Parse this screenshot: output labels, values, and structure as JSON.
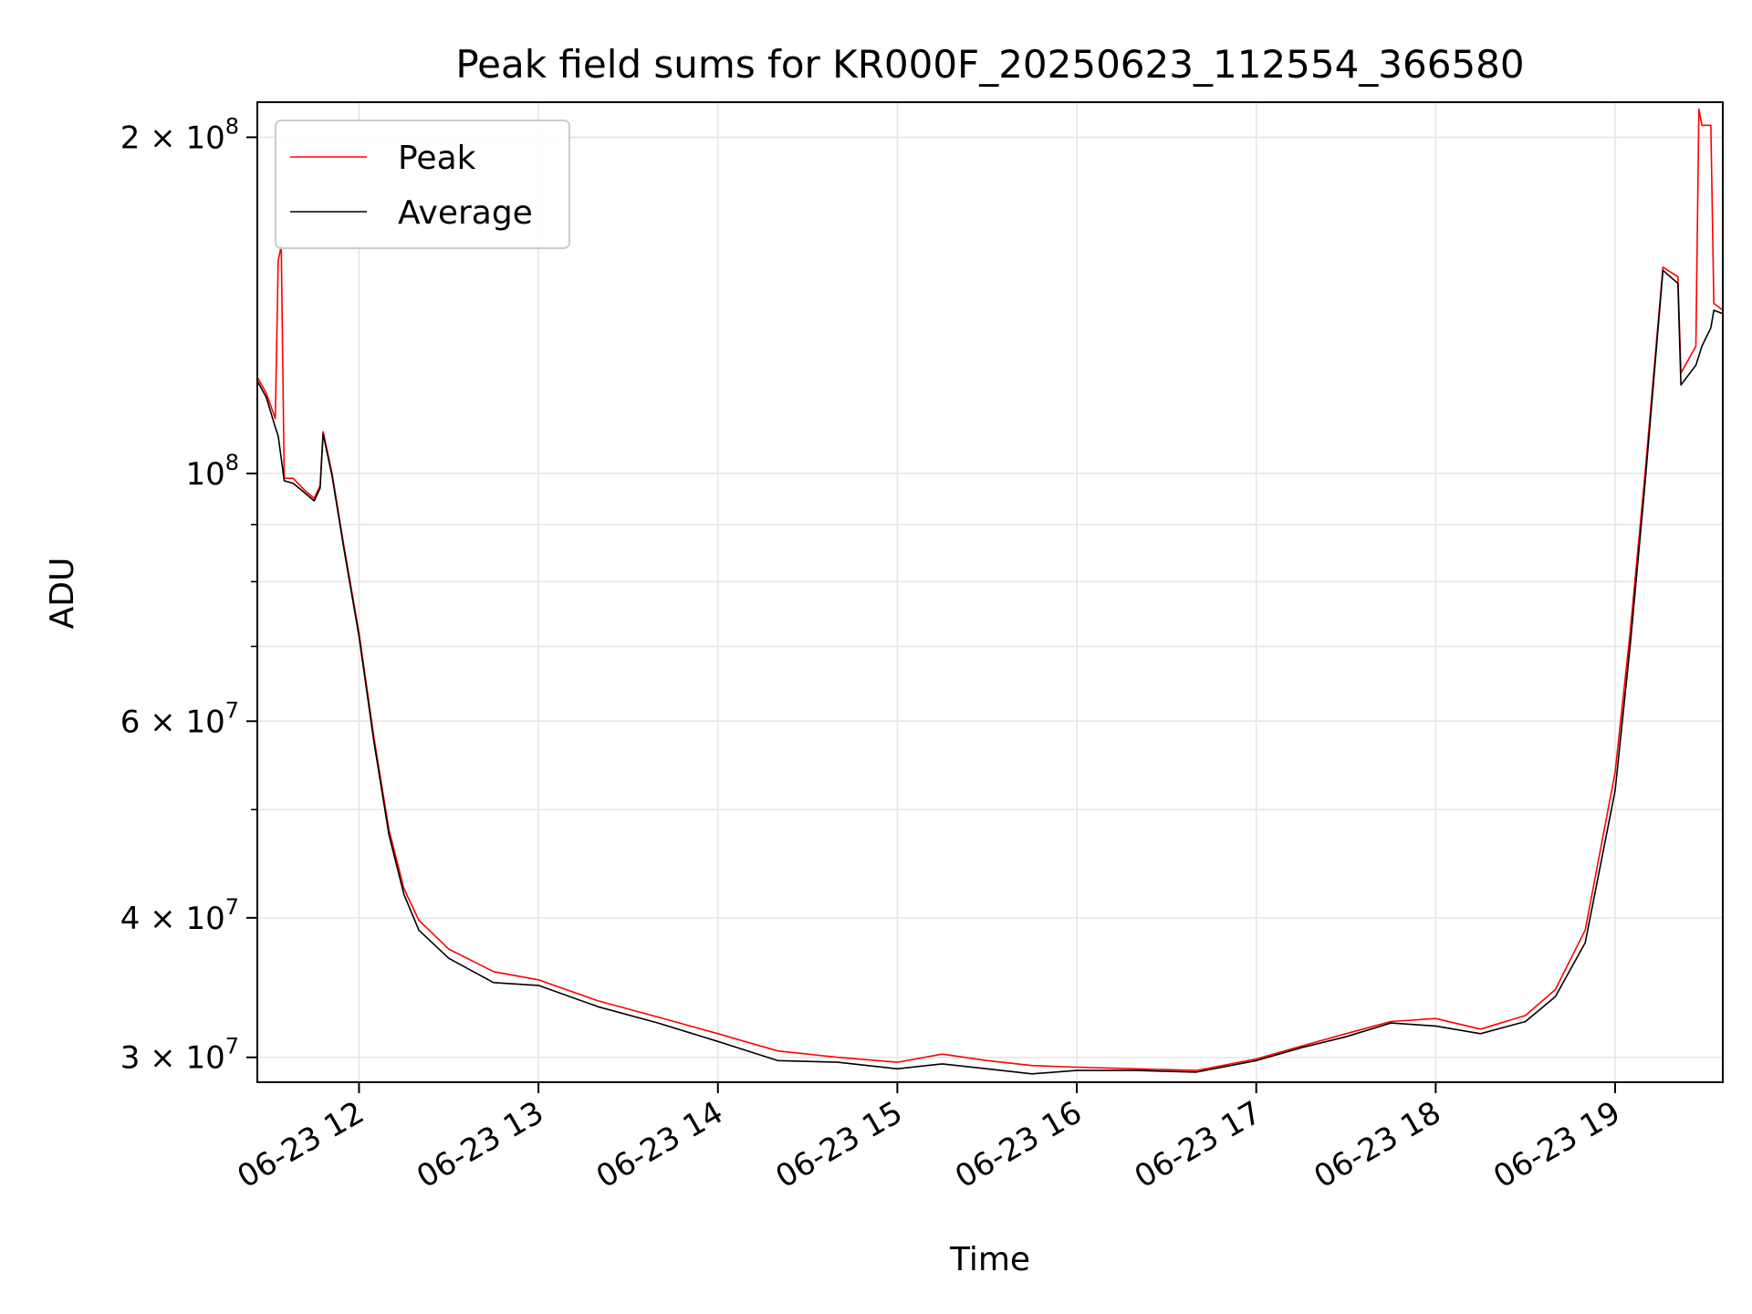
{
  "chart_data": {
    "type": "line",
    "title": "Peak field sums for KR000F_20250623_112554_366580",
    "xlabel": "Time",
    "ylabel": "ADU",
    "yscale": "log",
    "xlim": [
      "2025-06-23 11:26",
      "2025-06-23 19:36"
    ],
    "ylim": [
      28500000,
      215000000
    ],
    "grid": true,
    "legend_position": "top-left",
    "x_ticks": [
      {
        "value": "2025-06-23 12:00",
        "label": "06-23 12"
      },
      {
        "value": "2025-06-23 13:00",
        "label": "06-23 13"
      },
      {
        "value": "2025-06-23 14:00",
        "label": "06-23 14"
      },
      {
        "value": "2025-06-23 15:00",
        "label": "06-23 15"
      },
      {
        "value": "2025-06-23 16:00",
        "label": "06-23 16"
      },
      {
        "value": "2025-06-23 17:00",
        "label": "06-23 17"
      },
      {
        "value": "2025-06-23 18:00",
        "label": "06-23 18"
      },
      {
        "value": "2025-06-23 19:00",
        "label": "06-23 19"
      }
    ],
    "y_ticks_major": [
      {
        "value": 30000000,
        "base": "3 × 10",
        "exp": "7"
      },
      {
        "value": 40000000,
        "base": "4 × 10",
        "exp": "7"
      },
      {
        "value": 60000000,
        "base": "6 × 10",
        "exp": "7"
      },
      {
        "value": 100000000,
        "base": "10",
        "exp": "8"
      },
      {
        "value": 200000000,
        "base": "2 × 10",
        "exp": "8"
      }
    ],
    "y_ticks_minor": [
      50000000,
      70000000,
      80000000,
      90000000
    ],
    "series": [
      {
        "name": "Peak",
        "color": "#ff0000",
        "x": [
          "2025-06-23 11:26",
          "2025-06-23 11:29",
          "2025-06-23 11:32",
          "2025-06-23 11:33",
          "2025-06-23 11:34",
          "2025-06-23 11:35",
          "2025-06-23 11:38",
          "2025-06-23 11:42",
          "2025-06-23 11:45",
          "2025-06-23 11:47",
          "2025-06-23 11:48",
          "2025-06-23 11:51",
          "2025-06-23 11:55",
          "2025-06-23 12:00",
          "2025-06-23 12:05",
          "2025-06-23 12:10",
          "2025-06-23 12:15",
          "2025-06-23 12:20",
          "2025-06-23 12:30",
          "2025-06-23 12:45",
          "2025-06-23 13:00",
          "2025-06-23 13:20",
          "2025-06-23 13:40",
          "2025-06-23 14:00",
          "2025-06-23 14:20",
          "2025-06-23 14:40",
          "2025-06-23 15:00",
          "2025-06-23 15:15",
          "2025-06-23 15:30",
          "2025-06-23 15:45",
          "2025-06-23 16:00",
          "2025-06-23 16:20",
          "2025-06-23 16:40",
          "2025-06-23 17:00",
          "2025-06-23 17:15",
          "2025-06-23 17:30",
          "2025-06-23 17:45",
          "2025-06-23 18:00",
          "2025-06-23 18:15",
          "2025-06-23 18:30",
          "2025-06-23 18:40",
          "2025-06-23 18:50",
          "2025-06-23 19:00",
          "2025-06-23 19:05",
          "2025-06-23 19:10",
          "2025-06-23 19:16",
          "2025-06-23 19:21",
          "2025-06-23 19:22",
          "2025-06-23 19:27",
          "2025-06-23 19:28",
          "2025-06-23 19:29",
          "2025-06-23 19:32",
          "2025-06-23 19:33",
          "2025-06-23 19:36"
        ],
        "y": [
          122000000,
          118000000,
          112000000,
          155000000,
          160000000,
          99000000,
          99000000,
          96500000,
          95000000,
          97500000,
          109000000,
          100000000,
          86000000,
          72000000,
          58000000,
          48000000,
          42500000,
          39800000,
          37500000,
          35800000,
          35200000,
          33700000,
          32600000,
          31500000,
          30400000,
          30000000,
          29700000,
          30200000,
          29800000,
          29500000,
          29400000,
          29300000,
          29200000,
          29900000,
          30700000,
          31500000,
          32300000,
          32500000,
          31800000,
          32700000,
          34500000,
          39000000,
          54000000,
          72000000,
          100000000,
          153000000,
          150000000,
          123000000,
          130000000,
          212000000,
          205000000,
          205000000,
          142000000,
          140000000
        ]
      },
      {
        "name": "Average",
        "color": "#000000",
        "x": [
          "2025-06-23 11:26",
          "2025-06-23 11:29",
          "2025-06-23 11:32",
          "2025-06-23 11:33",
          "2025-06-23 11:35",
          "2025-06-23 11:38",
          "2025-06-23 11:42",
          "2025-06-23 11:45",
          "2025-06-23 11:47",
          "2025-06-23 11:48",
          "2025-06-23 11:51",
          "2025-06-23 11:55",
          "2025-06-23 12:00",
          "2025-06-23 12:05",
          "2025-06-23 12:10",
          "2025-06-23 12:15",
          "2025-06-23 12:20",
          "2025-06-23 12:30",
          "2025-06-23 12:45",
          "2025-06-23 13:00",
          "2025-06-23 13:20",
          "2025-06-23 13:40",
          "2025-06-23 14:00",
          "2025-06-23 14:20",
          "2025-06-23 14:40",
          "2025-06-23 15:00",
          "2025-06-23 15:15",
          "2025-06-23 15:30",
          "2025-06-23 15:45",
          "2025-06-23 16:00",
          "2025-06-23 16:20",
          "2025-06-23 16:40",
          "2025-06-23 17:00",
          "2025-06-23 17:15",
          "2025-06-23 17:30",
          "2025-06-23 17:45",
          "2025-06-23 18:00",
          "2025-06-23 18:15",
          "2025-06-23 18:30",
          "2025-06-23 18:40",
          "2025-06-23 18:50",
          "2025-06-23 19:00",
          "2025-06-23 19:05",
          "2025-06-23 19:10",
          "2025-06-23 19:16",
          "2025-06-23 19:21",
          "2025-06-23 19:22",
          "2025-06-23 19:27",
          "2025-06-23 19:29",
          "2025-06-23 19:32",
          "2025-06-23 19:33",
          "2025-06-23 19:36"
        ],
        "y": [
          121000000,
          117000000,
          110000000,
          108000000,
          98500000,
          98000000,
          96000000,
          94500000,
          97000000,
          108500000,
          99500000,
          85500000,
          71500000,
          57500000,
          47500000,
          42000000,
          39000000,
          36800000,
          35000000,
          34800000,
          33300000,
          32200000,
          31000000,
          29800000,
          29700000,
          29300000,
          29600000,
          29300000,
          29000000,
          29200000,
          29200000,
          29100000,
          29800000,
          30600000,
          31300000,
          32200000,
          32000000,
          31500000,
          32300000,
          34000000,
          38000000,
          52000000,
          70000000,
          98000000,
          152000000,
          148000000,
          120000000,
          125000000,
          130000000,
          135000000,
          140000000,
          139000000
        ]
      }
    ]
  }
}
